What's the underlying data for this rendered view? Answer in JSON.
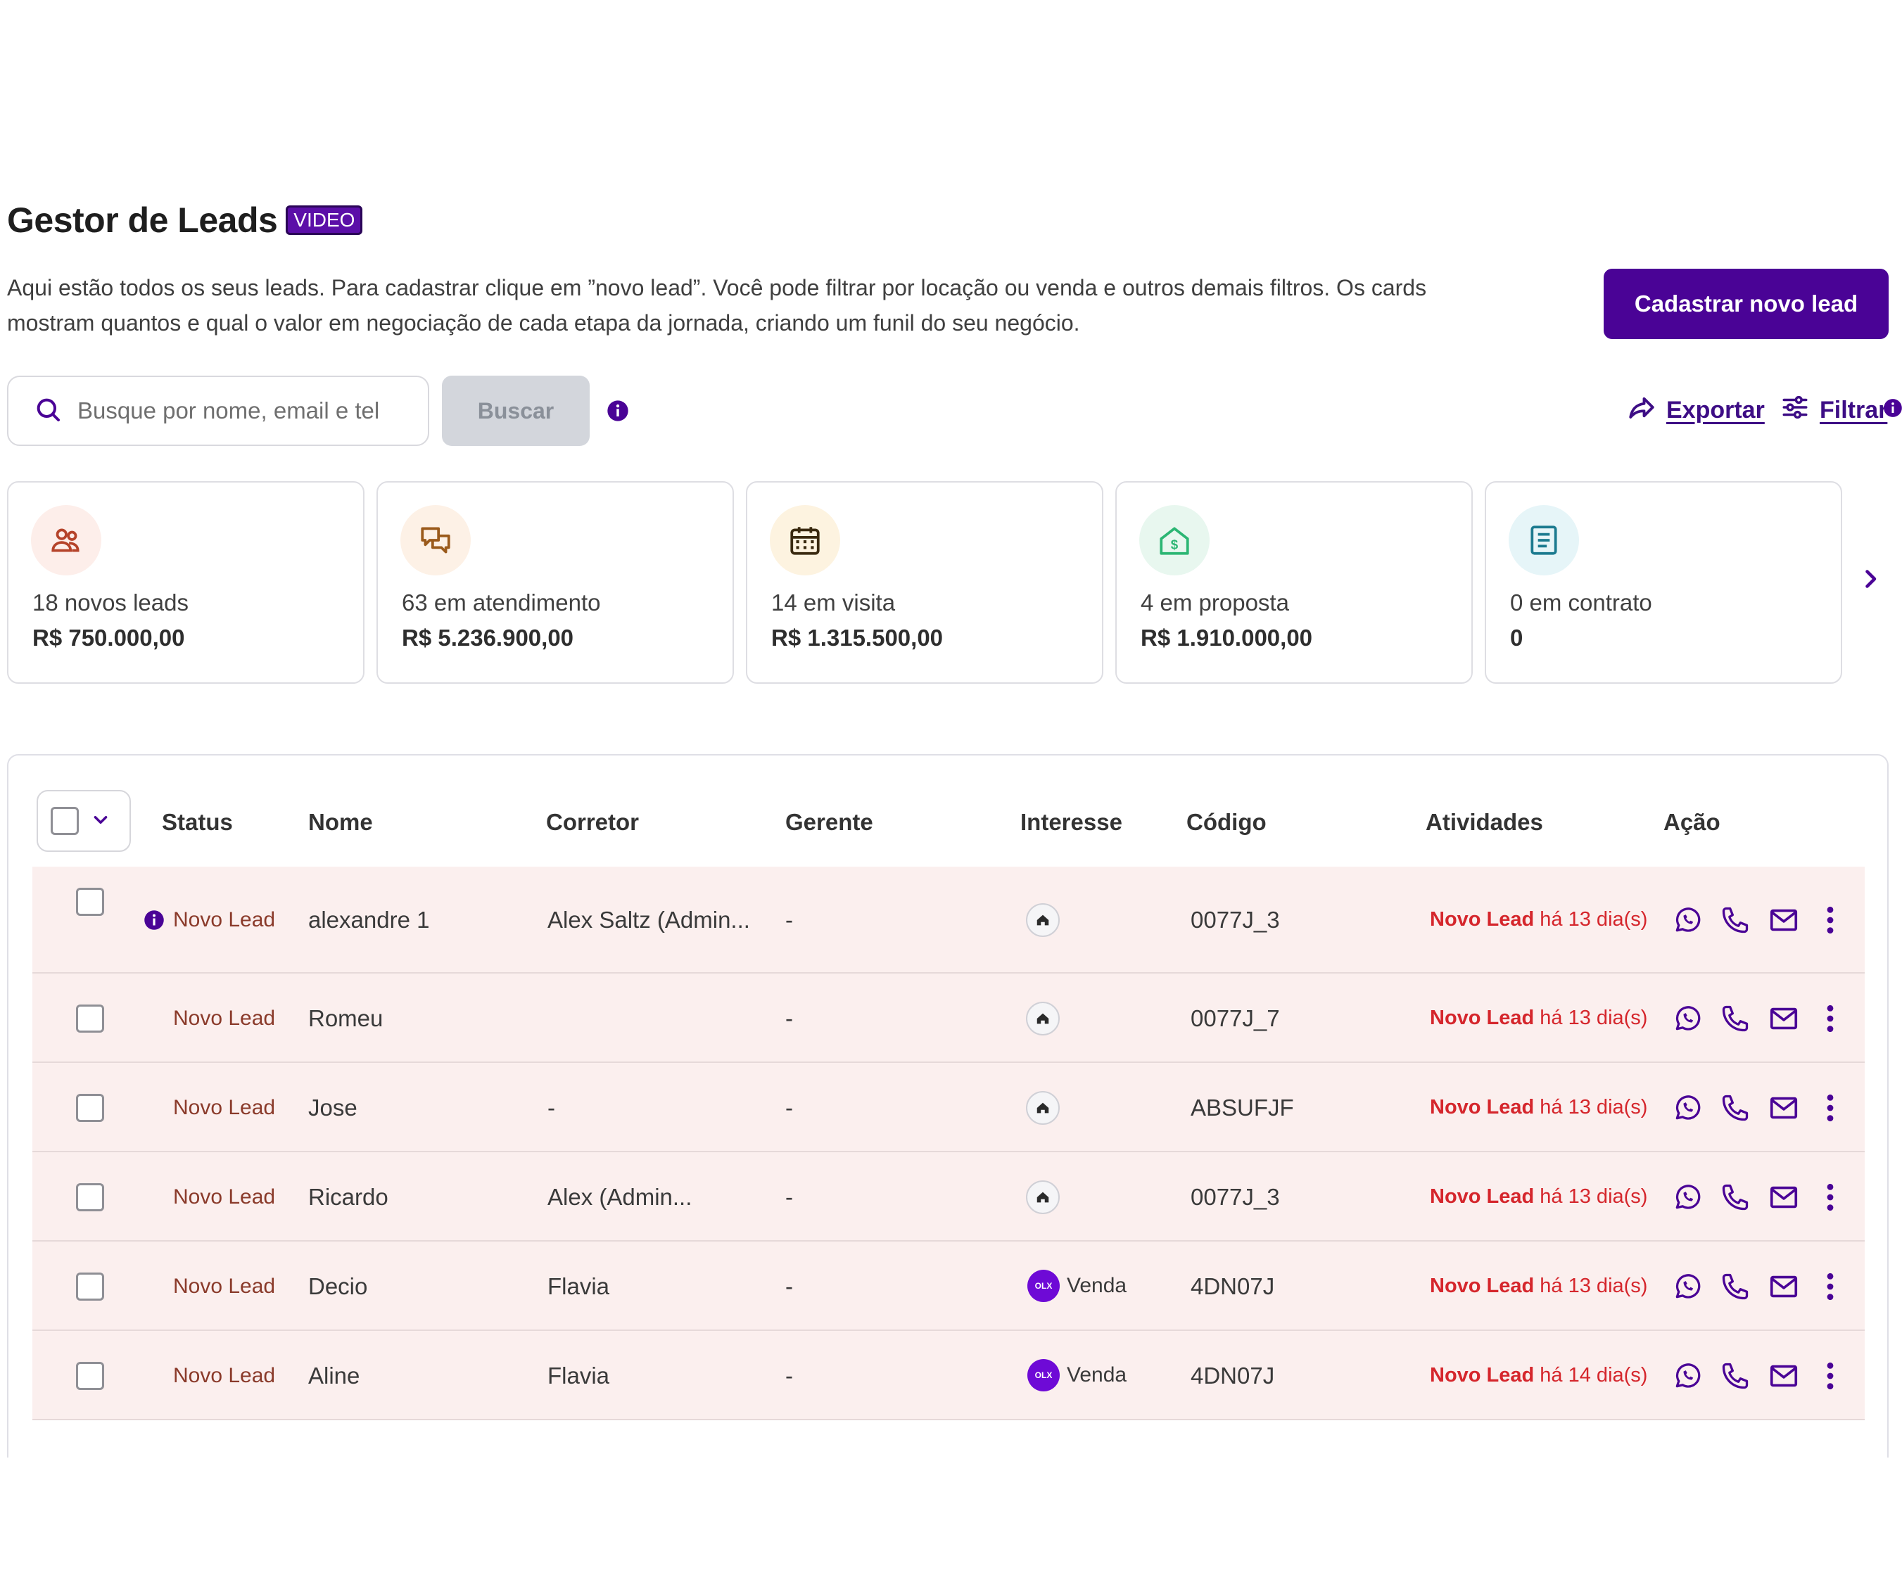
{
  "header": {
    "title": "Gestor de Leads",
    "video_badge": "VIDEO",
    "description": "Aqui estão todos os seus leads. Para cadastrar clique em ”novo lead”. Você pode filtrar por locação ou venda e outros demais filtros. Os cards mostram quantos e qual o valor em negociação de cada etapa da jornada, criando um funil do seu negócio.",
    "new_lead_button": "Cadastrar novo lead"
  },
  "search": {
    "placeholder": "Busque por nome, email e tel",
    "button": "Buscar",
    "export_label": "Exportar",
    "filter_label": "Filtrar"
  },
  "cards": [
    {
      "label": "18 novos leads",
      "value": "R$ 750.000,00",
      "icon": "users-icon",
      "bg": "#fdeeea",
      "color": "#b5432a"
    },
    {
      "label": "63 em atendimento",
      "value": "R$ 5.236.900,00",
      "icon": "chat-icon",
      "bg": "#fdf1e6",
      "color": "#9a5a1b"
    },
    {
      "label": "14 em visita",
      "value": "R$ 1.315.500,00",
      "icon": "calendar-icon",
      "bg": "#fdf3e0",
      "color": "#3a2a10"
    },
    {
      "label": "4 em proposta",
      "value": "R$ 1.910.000,00",
      "icon": "house-dollar-icon",
      "bg": "#e8f7ef",
      "color": "#2bb673"
    },
    {
      "label": "0 em contrato",
      "value": "0",
      "icon": "document-icon",
      "bg": "#e6f5f8",
      "color": "#1b7a8f"
    }
  ],
  "table": {
    "headers": [
      "Status",
      "Nome",
      "Corretor",
      "Gerente",
      "Interesse",
      "Código",
      "Atividades",
      "Ação"
    ],
    "rows": [
      {
        "status": "Novo Lead",
        "name": "alexandre 1",
        "broker": "Alex Saltz (Admin...",
        "manager": "-",
        "interest": "",
        "code": "0077J_3",
        "activity_strong": "Novo Lead",
        "activity_rest": " há 13 dia(s)"
      },
      {
        "status": "Novo Lead",
        "name": "Romeu",
        "broker": "",
        "manager": "-",
        "interest": "",
        "code": "0077J_7",
        "activity_strong": "Novo Lead",
        "activity_rest": " há 13 dia(s)"
      },
      {
        "status": "Novo Lead",
        "name": "Jose",
        "broker": "-",
        "manager": "-",
        "interest": "",
        "code": "ABSUFJF",
        "activity_strong": "Novo Lead",
        "activity_rest": " há 13 dia(s)"
      },
      {
        "status": "Novo Lead",
        "name": "Ricardo",
        "broker": "Alex        (Admin...",
        "manager": "-",
        "interest": "",
        "code": "0077J_3",
        "activity_strong": "Novo Lead",
        "activity_rest": " há 13 dia(s)"
      },
      {
        "status": "Novo Lead",
        "name": "Decio",
        "broker": "Flavia",
        "manager": "-",
        "interest": "Venda",
        "code": "4DN07J",
        "activity_strong": "Novo Lead",
        "activity_rest": " há 13 dia(s)"
      },
      {
        "status": "Novo Lead",
        "name": "Aline",
        "broker": "Flavia",
        "manager": "-",
        "interest": "Venda",
        "code": "4DN07J",
        "activity_strong": "Novo Lead",
        "activity_rest": " há 14 dia(s)"
      }
    ]
  },
  "colors": {
    "brand": "#4a0396",
    "accent_link": "#3d0d85",
    "row_bg": "#fbefee",
    "activity_red": "#d5262c"
  }
}
